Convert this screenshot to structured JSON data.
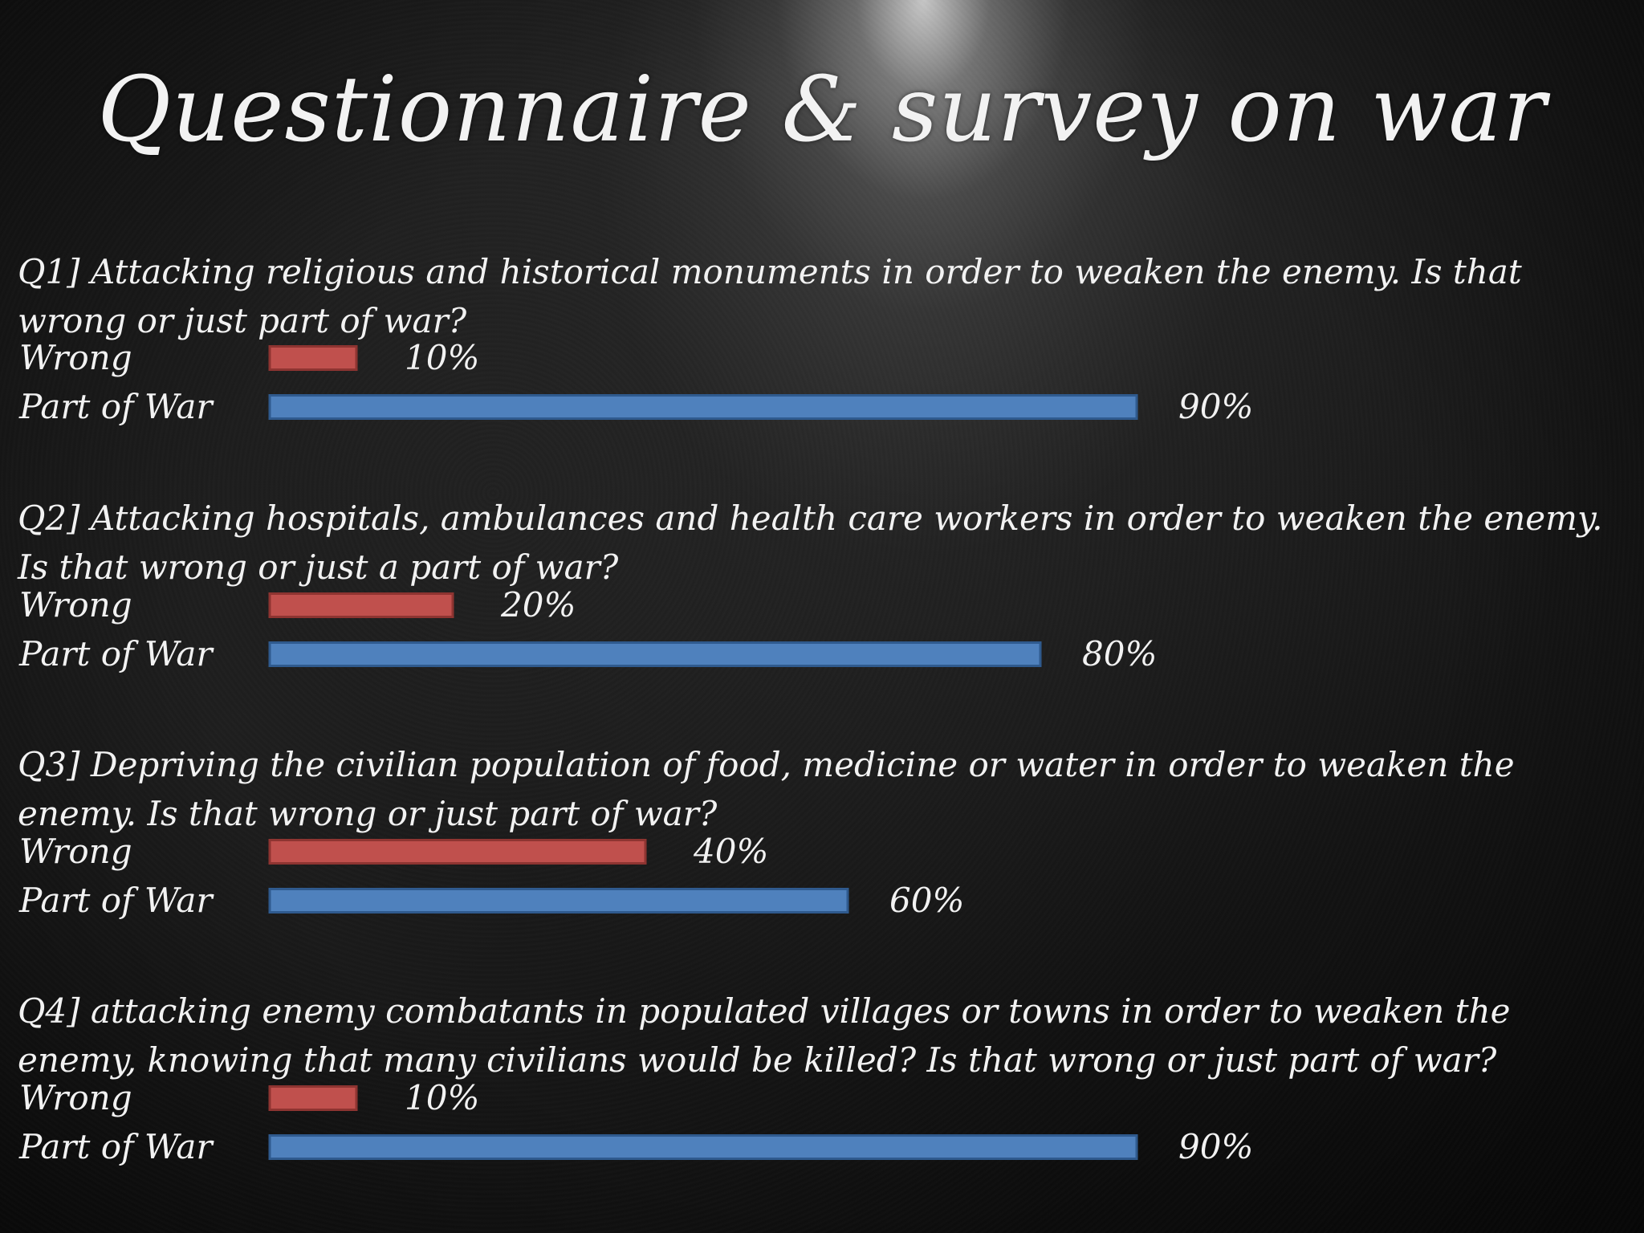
{
  "title": "Questionnaire & survey on war",
  "questions": [
    {
      "text": "Q1] Attacking religious and historical monuments in order to weaken the enemy. Is that wrong or just part of war?"
    },
    {
      "text": "Q2] Attacking hospitals, ambulances and health care workers in order to weaken the enemy. Is that wrong or just a part of war?"
    },
    {
      "text": "Q3] Depriving the civilian population of food, medicine or water in order to weaken the enemy. Is that wrong or just part of war?"
    },
    {
      "text": "Q4] attacking enemy combatants in populated villages or towns in order to weaken the enemy, knowing that many civilians would be killed? Is that wrong or just part of war?"
    }
  ],
  "colors": {
    "wrong": "#c0504d",
    "wrong_border": "#8e3431",
    "part_of_war": "#4f81bd",
    "part_of_war_border": "#2f5a8e",
    "text": "#f2f2f2"
  },
  "chart_data": [
    {
      "type": "bar",
      "orientation": "horizontal",
      "categories": [
        "Wrong",
        "Part of War"
      ],
      "values": [
        10,
        90
      ],
      "value_labels": [
        "10%",
        "90%"
      ]
    },
    {
      "type": "bar",
      "orientation": "horizontal",
      "categories": [
        "Wrong",
        "Part of War"
      ],
      "values": [
        20,
        80
      ],
      "value_labels": [
        "20%",
        "80%"
      ]
    },
    {
      "type": "bar",
      "orientation": "horizontal",
      "categories": [
        "Wrong",
        "Part of War"
      ],
      "values": [
        40,
        60
      ],
      "value_labels": [
        "40%",
        "60%"
      ]
    },
    {
      "type": "bar",
      "orientation": "horizontal",
      "categories": [
        "Wrong",
        "Part of War"
      ],
      "values": [
        10,
        90
      ],
      "value_labels": [
        "10%",
        "90%"
      ]
    }
  ]
}
